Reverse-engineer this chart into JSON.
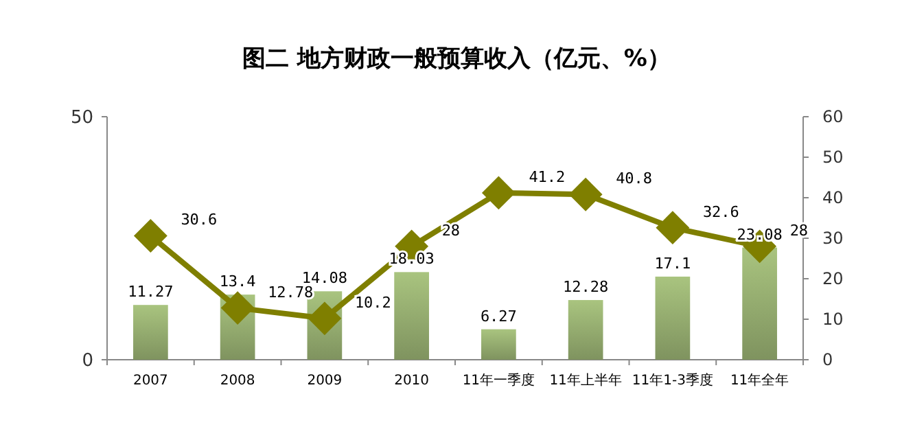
{
  "chart_data": {
    "type": "bar",
    "title": "图二  地方财政一般预算收入（亿元、%）",
    "categories": [
      "2007",
      "2008",
      "2009",
      "2010",
      "11年一季度",
      "11年上半年",
      "11年1-3季度",
      "11年全年"
    ],
    "series": [
      {
        "color": "#a9c47f",
        "values": [
          11.27,
          13.4,
          14.08,
          18.03,
          6.27,
          12.28,
          17.1,
          23.08
        ]
      },
      {
        "type": "line",
        "axis": "y2",
        "color": "#7f7f00",
        "values": [
          30.6,
          12.78,
          10.2,
          28,
          41.2,
          40.8,
          32.6,
          28
        ]
      }
    ],
    "ylim": [
      0,
      50
    ],
    "yticks": [
      0,
      50
    ],
    "y2lim": [
      0,
      60
    ],
    "y2ticks": [
      0,
      10,
      20,
      30,
      40,
      50,
      60
    ],
    "marker": "diamond",
    "data_labels": true,
    "grid": false
  }
}
